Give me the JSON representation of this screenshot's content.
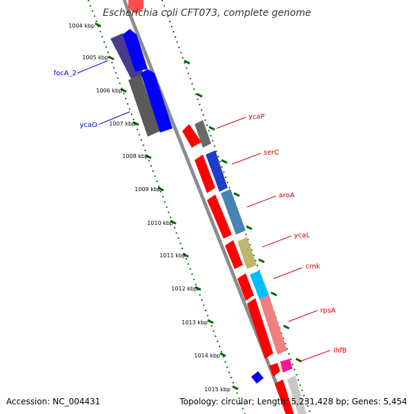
{
  "title": "Escherichia coli CFT073, complete genome",
  "footer": {
    "accession": "Accession: NC_004431",
    "topology": "Topology: circular; Length: 5,231,428 bp; Genes: 5,454"
  },
  "colors": {
    "backbone": "#8c8c8c",
    "kbp_tick": "#006400",
    "left_label": "#0000cc",
    "right_label": "#cc0000"
  },
  "kbp_labels": [
    "1004 kbp",
    "1005 kbp",
    "1006 kbp",
    "1007 kbp",
    "1008 kbp",
    "1009 kbp",
    "1010 kbp",
    "1011 kbp",
    "1012 kbp",
    "1013 kbp",
    "1014 kbp",
    "1015 kbp"
  ],
  "left_genes": [
    {
      "label": "focA_2"
    },
    {
      "label": "ycaO"
    }
  ],
  "right_genes": [
    {
      "label": "ycaP"
    },
    {
      "label": "serC"
    },
    {
      "label": "aroA"
    },
    {
      "label": "ycaL"
    },
    {
      "label": "cmk"
    },
    {
      "label": "rpsA"
    },
    {
      "label": "ihfB"
    }
  ]
}
